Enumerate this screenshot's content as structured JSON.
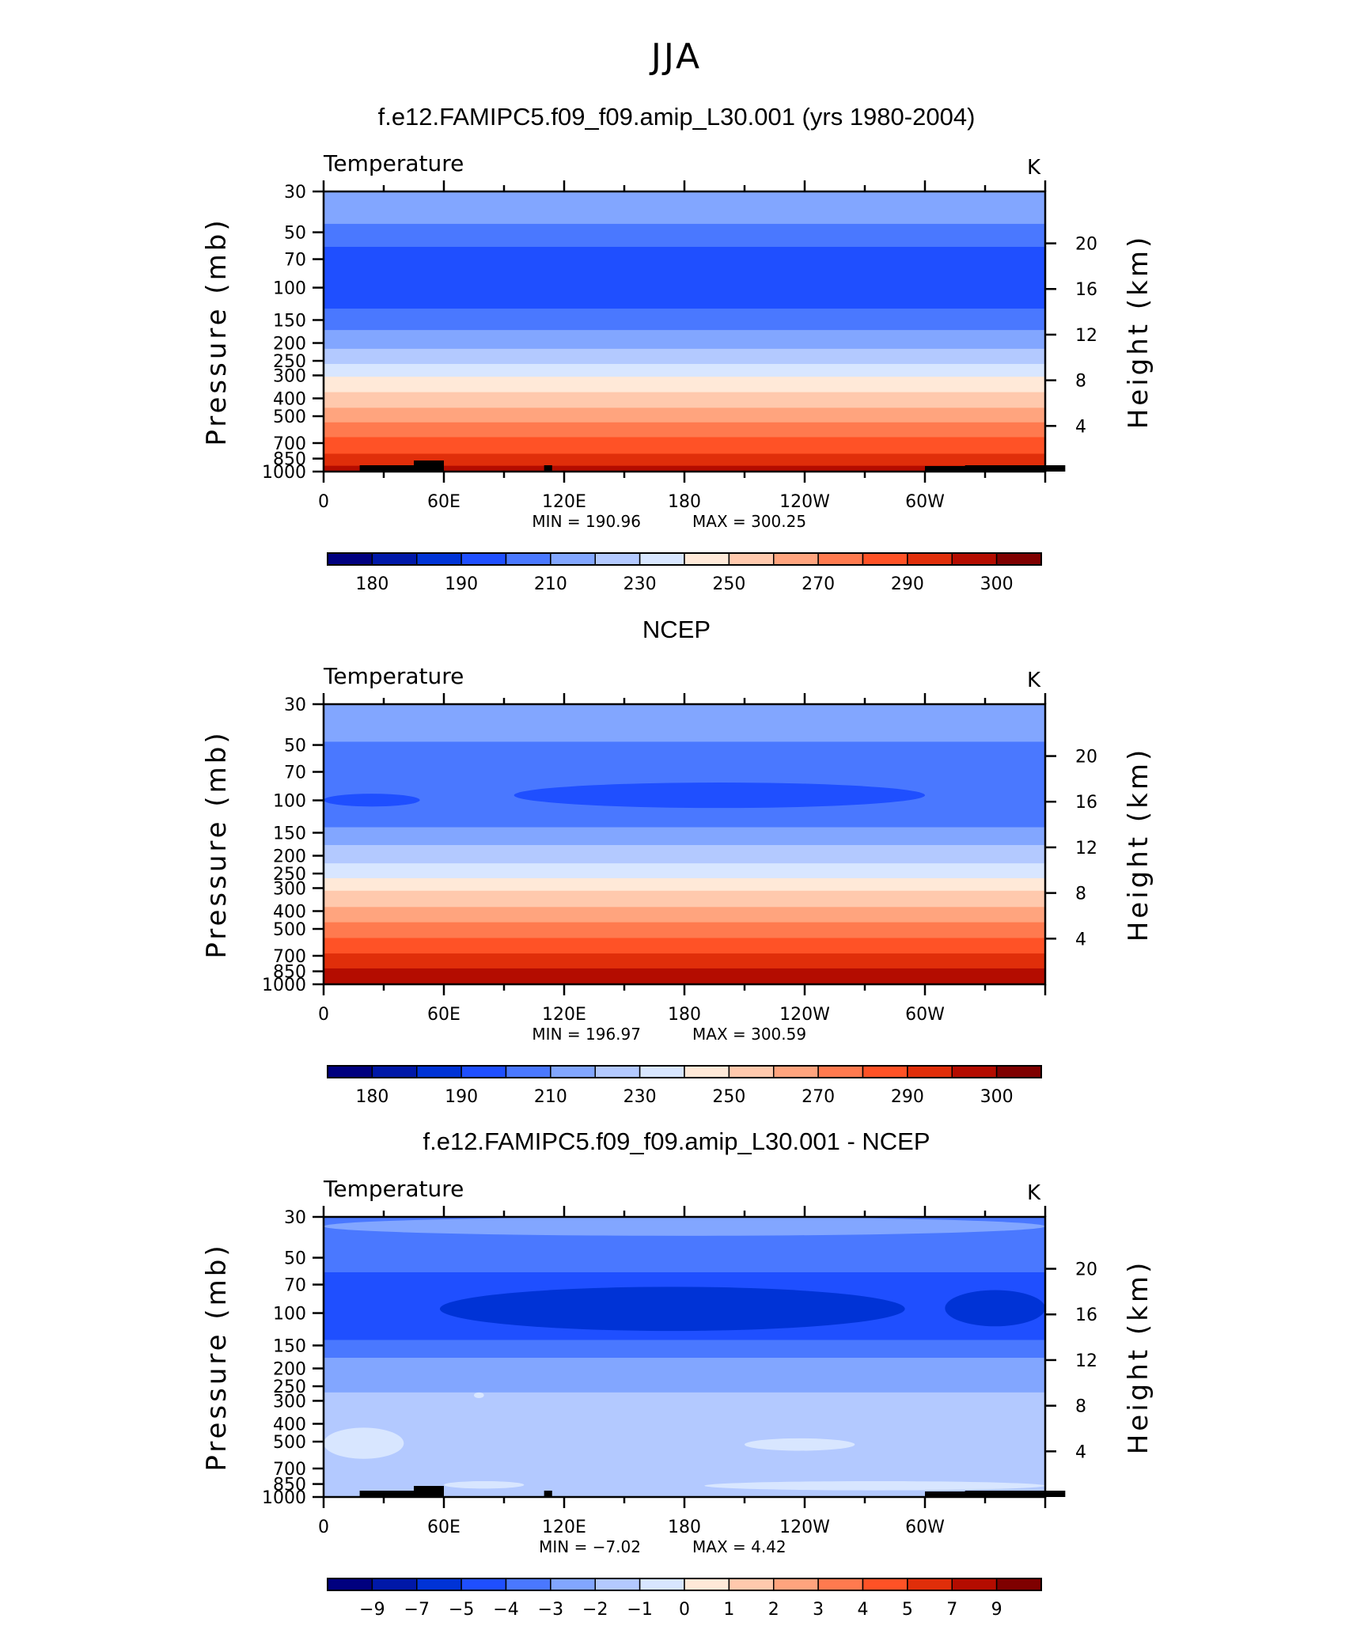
{
  "figure": {
    "title": "JJA"
  },
  "chart_data": [
    {
      "type": "heatmap",
      "title": "f.e12.FAMIPC5.f09_f09.amip_L30.001 (yrs 1980-2004)",
      "subtitle": "Temperature",
      "units": "K",
      "ylabel": "Pressure (mb)",
      "ylabel_right": "Height (km)",
      "x_ticks": [
        "0",
        "60E",
        "120E",
        "180",
        "120W",
        "60W"
      ],
      "y_ticks": [
        "30",
        "50",
        "70",
        "100",
        "150",
        "200",
        "250",
        "300",
        "400",
        "500",
        "700",
        "850",
        "1000"
      ],
      "y_ticks_right": [
        "20",
        "16",
        "12",
        "8",
        "4"
      ],
      "y_scale": "log pressure",
      "min_label": "MIN = 190.96",
      "max_label": "MAX = 300.25",
      "min": 190.96,
      "max": 300.25,
      "colorbar_labels": [
        "180",
        "190",
        "210",
        "230",
        "250",
        "270",
        "290",
        "300"
      ],
      "bands": [
        {
          "p": [
            30,
            45
          ],
          "level": 5
        },
        {
          "p": [
            45,
            60
          ],
          "level": 4
        },
        {
          "p": [
            60,
            130
          ],
          "level": 3
        },
        {
          "p": [
            130,
            170
          ],
          "level": 4
        },
        {
          "p": [
            170,
            215
          ],
          "level": 5
        },
        {
          "p": [
            215,
            260
          ],
          "level": 6
        },
        {
          "p": [
            260,
            305
          ],
          "level": 7
        },
        {
          "p": [
            305,
            370
          ],
          "level": 8
        },
        {
          "p": [
            370,
            450
          ],
          "level": 9
        },
        {
          "p": [
            450,
            540
          ],
          "level": 10
        },
        {
          "p": [
            540,
            650
          ],
          "level": 11
        },
        {
          "p": [
            650,
            800
          ],
          "level": 12
        },
        {
          "p": [
            800,
            930
          ],
          "level": 13
        },
        {
          "p": [
            930,
            1000
          ],
          "level": 14
        }
      ],
      "terrain": true
    },
    {
      "type": "heatmap",
      "title": "NCEP",
      "subtitle": "Temperature",
      "units": "K",
      "ylabel": "Pressure (mb)",
      "ylabel_right": "Height (km)",
      "x_ticks": [
        "0",
        "60E",
        "120E",
        "180",
        "120W",
        "60W"
      ],
      "y_ticks": [
        "30",
        "50",
        "70",
        "100",
        "150",
        "200",
        "250",
        "300",
        "400",
        "500",
        "700",
        "850",
        "1000"
      ],
      "y_ticks_right": [
        "20",
        "16",
        "12",
        "8",
        "4"
      ],
      "y_scale": "log pressure",
      "min_label": "MIN = 196.97",
      "max_label": "MAX = 300.59",
      "min": 196.97,
      "max": 300.59,
      "colorbar_labels": [
        "180",
        "190",
        "210",
        "230",
        "250",
        "270",
        "290",
        "300"
      ],
      "bands": [
        {
          "p": [
            30,
            48
          ],
          "level": 5
        },
        {
          "p": [
            48,
            140
          ],
          "level": 4
        },
        {
          "p": [
            140,
            175
          ],
          "level": 5
        },
        {
          "p": [
            175,
            220
          ],
          "level": 6
        },
        {
          "p": [
            220,
            265
          ],
          "level": 7
        },
        {
          "p": [
            265,
            310
          ],
          "level": 8
        },
        {
          "p": [
            310,
            380
          ],
          "level": 9
        },
        {
          "p": [
            380,
            460
          ],
          "level": 10
        },
        {
          "p": [
            460,
            560
          ],
          "level": 11
        },
        {
          "p": [
            560,
            680
          ],
          "level": 12
        },
        {
          "p": [
            680,
            820
          ],
          "level": 13
        },
        {
          "p": [
            820,
            1000
          ],
          "level": 14
        }
      ],
      "blobs": [
        {
          "lon": [
            95,
            300
          ],
          "p": [
            80,
            110
          ],
          "level": 3
        },
        {
          "lon": [
            0,
            48
          ],
          "p": [
            92,
            108
          ],
          "level": 3
        }
      ],
      "terrain": false
    },
    {
      "type": "heatmap",
      "title": "f.e12.FAMIPC5.f09_f09.amip_L30.001 - NCEP",
      "subtitle": "Temperature",
      "units": "K",
      "ylabel": "Pressure (mb)",
      "ylabel_right": "Height (km)",
      "x_ticks": [
        "0",
        "60E",
        "120E",
        "180",
        "120W",
        "60W"
      ],
      "y_ticks": [
        "30",
        "50",
        "70",
        "100",
        "150",
        "200",
        "250",
        "300",
        "400",
        "500",
        "700",
        "850",
        "1000"
      ],
      "y_ticks_right": [
        "20",
        "16",
        "12",
        "8",
        "4"
      ],
      "y_scale": "log pressure",
      "min_label": "MIN = −7.02",
      "max_label": "MAX = 4.42",
      "min": -7.02,
      "max": 4.42,
      "colorbar_labels": [
        "−9",
        "−7",
        "−5",
        "−4",
        "−3",
        "−2",
        "−1",
        "0",
        "1",
        "2",
        "3",
        "4",
        "5",
        "7",
        "9"
      ],
      "bands": [
        {
          "p": [
            30,
            60
          ],
          "level": 4
        },
        {
          "p": [
            60,
            140
          ],
          "level": 3
        },
        {
          "p": [
            140,
            175
          ],
          "level": 4
        },
        {
          "p": [
            175,
            270
          ],
          "level": 5
        },
        {
          "p": [
            270,
            1000
          ],
          "level": 6
        }
      ],
      "blobs": [
        {
          "lon": [
            58,
            290
          ],
          "p": [
            72,
            125
          ],
          "level": 2
        },
        {
          "lon": [
            310,
            360
          ],
          "p": [
            75,
            118
          ],
          "level": 2
        },
        {
          "lon": [
            0,
            360
          ],
          "p": [
            30,
            38
          ],
          "level": 5
        },
        {
          "lon": [
            0,
            40
          ],
          "p": [
            420,
            620
          ],
          "level": 7
        },
        {
          "lon": [
            210,
            265
          ],
          "p": [
            480,
            560
          ],
          "level": 7
        },
        {
          "lon": [
            190,
            360
          ],
          "p": [
            820,
            920
          ],
          "level": 7
        },
        {
          "lon": [
            60,
            100
          ],
          "p": [
            820,
            900
          ],
          "level": 7
        },
        {
          "lon": [
            75,
            80
          ],
          "p": [
            270,
            290
          ],
          "level": 7
        }
      ],
      "terrain": true
    }
  ],
  "colors": {
    "temp_levels": [
      "#00007f",
      "#0018a8",
      "#0033d6",
      "#1f4fff",
      "#4a78ff",
      "#82a6ff",
      "#b3c9ff",
      "#d8e6ff",
      "#ffe9d8",
      "#ffc9ad",
      "#ffa47e",
      "#ff7a4f",
      "#ff5226",
      "#e02e0a",
      "#b40c00",
      "#7f0000"
    ],
    "diff_levels": [
      "#00007f",
      "#0018a8",
      "#0033d6",
      "#1f4fff",
      "#4a78ff",
      "#82a6ff",
      "#b3c9ff",
      "#d8e6ff",
      "#ffe9d8",
      "#ffc9ad",
      "#ffa47e",
      "#ff7a4f",
      "#ff5226",
      "#e02e0a",
      "#b40c00",
      "#7f0000"
    ]
  }
}
